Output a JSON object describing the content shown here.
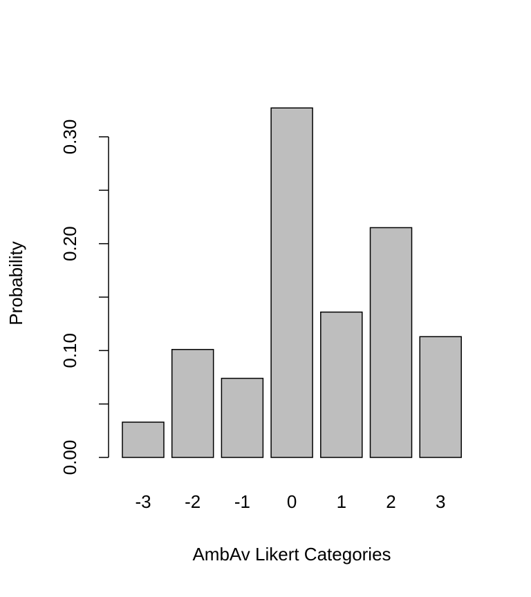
{
  "chart_data": {
    "type": "bar",
    "xlabel": "AmbAv Likert Categories",
    "ylabel": "Probability",
    "categories": [
      "-3",
      "-2",
      "-1",
      "0",
      "1",
      "2",
      "3"
    ],
    "values": [
      0.033,
      0.101,
      0.074,
      0.327,
      0.136,
      0.215,
      0.113
    ],
    "color": "#bebebe",
    "ylim": [
      0,
      0.3
    ],
    "yticks": [
      {
        "value": 0,
        "label": "0.00"
      },
      {
        "value": 0.1,
        "label": "0.10"
      },
      {
        "value": 0.2,
        "label": "0.20"
      },
      {
        "value": 0.3,
        "label": "0.30"
      }
    ],
    "minor_yticks": [
      0.05,
      0.15,
      0.25
    ]
  }
}
